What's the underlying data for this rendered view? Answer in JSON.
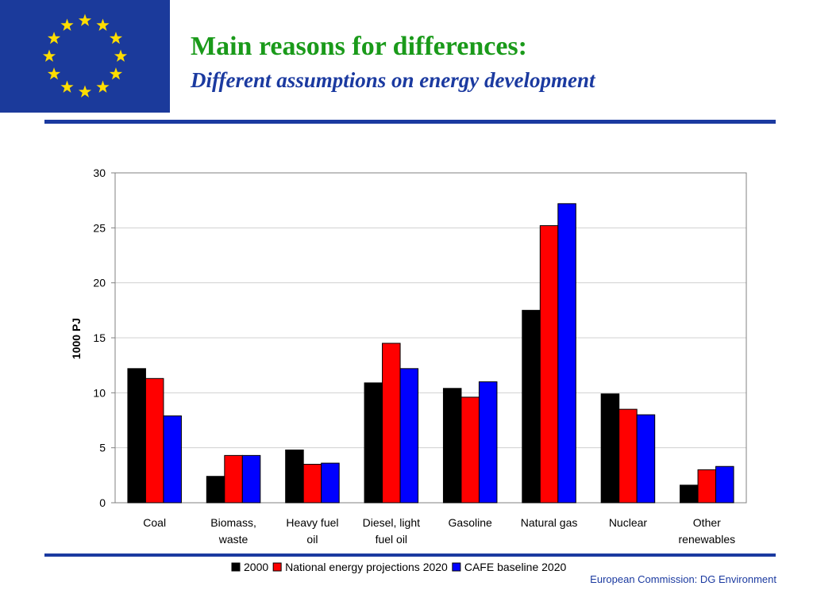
{
  "header": {
    "title": "Main reasons for differences:",
    "subtitle": "Different assumptions on energy development",
    "logo": "eu-flag",
    "colors": {
      "title": "#1a9a1a",
      "subtitle": "#1b3aa0",
      "flag": "#1b3a9b",
      "stars": "#ffdd00"
    }
  },
  "footer": {
    "text": "European Commission: DG Environment"
  },
  "chart_data": {
    "type": "bar",
    "title": "",
    "xlabel": "",
    "ylabel": "1000 PJ",
    "ylim": [
      0,
      30
    ],
    "yticks": [
      0,
      5,
      10,
      15,
      20,
      25,
      30
    ],
    "grid": true,
    "legend_position": "bottom",
    "categories": [
      [
        "Coal"
      ],
      [
        "Biomass,",
        "waste"
      ],
      [
        "Heavy fuel",
        "oil"
      ],
      [
        "Diesel, light",
        "fuel oil"
      ],
      [
        "Gasoline"
      ],
      [
        "Natural gas"
      ],
      [
        "Nuclear"
      ],
      [
        "Other",
        "renewables"
      ]
    ],
    "series": [
      {
        "name": "2000",
        "color": "#000000",
        "values": [
          12.2,
          2.4,
          4.8,
          10.9,
          10.4,
          17.5,
          9.9,
          1.6
        ]
      },
      {
        "name": "National energy projections 2020",
        "color": "#ff0000",
        "values": [
          11.3,
          4.3,
          3.5,
          14.5,
          9.6,
          25.2,
          8.5,
          3.0
        ]
      },
      {
        "name": "CAFE baseline 2020",
        "color": "#0000ff",
        "values": [
          7.9,
          4.3,
          3.6,
          12.2,
          11.0,
          27.2,
          8.0,
          3.3
        ]
      }
    ]
  }
}
